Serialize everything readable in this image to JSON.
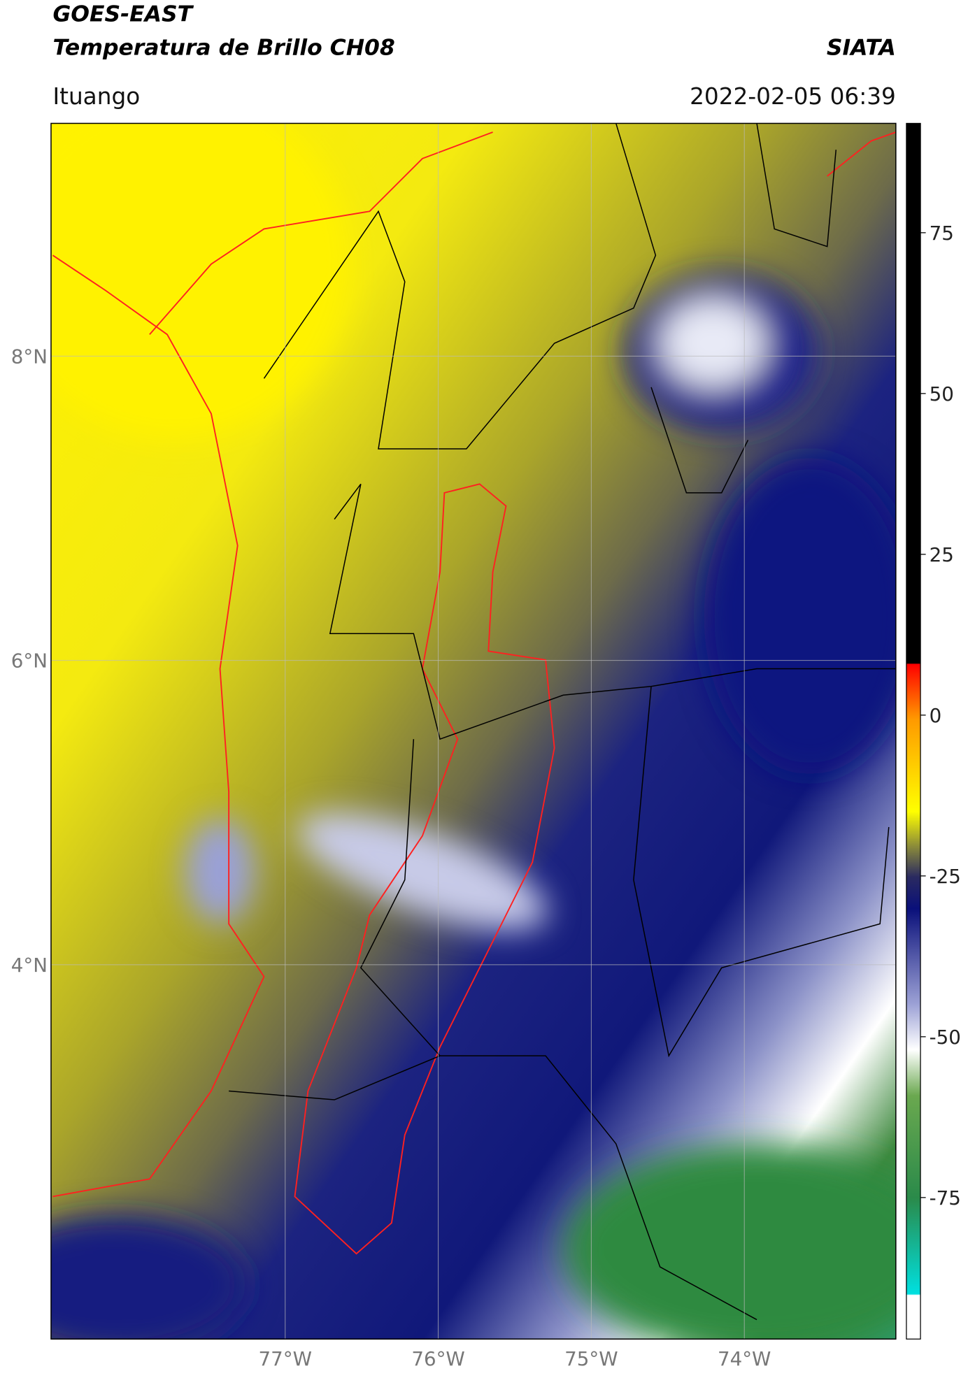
{
  "header": {
    "title_line1": "GOES-EAST",
    "title_line2": "Temperatura de Brillo CH08",
    "source": "SIATA",
    "location": "Ituango",
    "datetime": "2022-02-05 06:39"
  },
  "map": {
    "lonlim": [
      -78.53,
      -73.01
    ],
    "latlim": [
      1.54,
      9.53
    ],
    "lat_ticks": [
      {
        "value": 8,
        "label": "8°N"
      },
      {
        "value": 6,
        "label": "6°N"
      },
      {
        "value": 4,
        "label": "4°N"
      }
    ],
    "lon_ticks": [
      {
        "value": -77,
        "label": "77°W"
      },
      {
        "value": -76,
        "label": "76°W"
      },
      {
        "value": -75,
        "label": "75°W"
      },
      {
        "value": -74,
        "label": "74°W"
      }
    ]
  },
  "colorbar": {
    "lim": [
      -97,
      92
    ],
    "ticks": [
      75,
      50,
      25,
      0,
      -25,
      -50,
      -75
    ]
  }
}
